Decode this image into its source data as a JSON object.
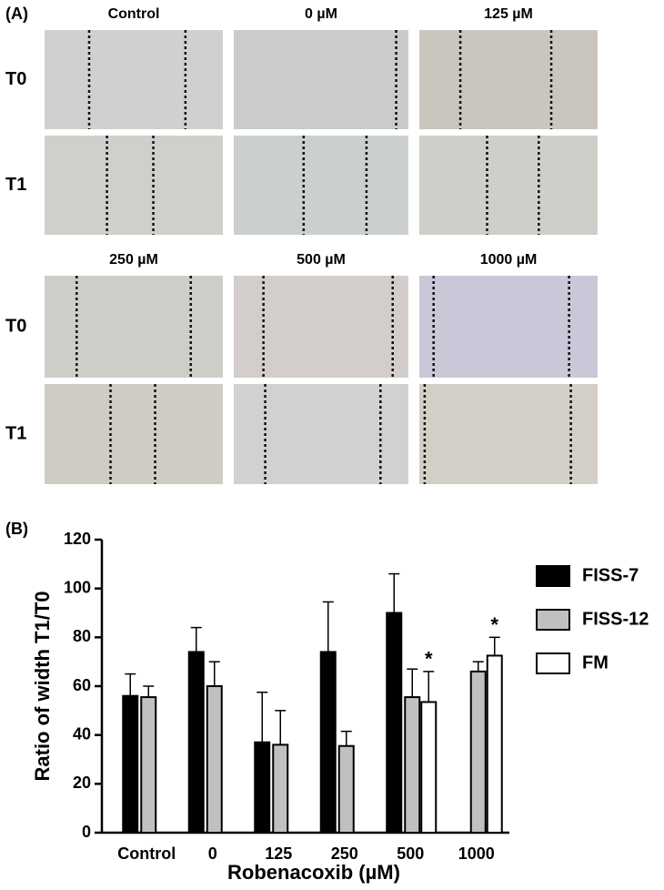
{
  "panel_a": {
    "label": "(A)",
    "groups": [
      {
        "columns": [
          "Control",
          "0 µM",
          "125 µM"
        ],
        "rows": [
          "T0",
          "T1"
        ]
      },
      {
        "columns": [
          "250 µM",
          "500 µM",
          "1000 µM"
        ],
        "rows": [
          "T0",
          "T1"
        ]
      }
    ]
  },
  "chart_data": {
    "type": "bar",
    "panel_label": "(B)",
    "y_label": "Ratio of width T1/T0",
    "x_label": "Robenacoxib (µM)",
    "categories": [
      "Control",
      "0",
      "125",
      "250",
      "500",
      "1000"
    ],
    "series": [
      {
        "name": "FISS-7",
        "color": "#000000",
        "values": [
          56,
          74,
          37,
          74,
          90,
          null
        ],
        "errors": [
          9,
          10,
          20.5,
          20.5,
          16,
          null
        ]
      },
      {
        "name": "FISS-12",
        "color": "#c0c0c0",
        "values": [
          55.5,
          60,
          36,
          35.5,
          55.5,
          66
        ],
        "errors": [
          4.5,
          10,
          14,
          6,
          11.5,
          4
        ]
      },
      {
        "name": "FM",
        "color": "#ffffff",
        "values": [
          null,
          null,
          null,
          null,
          53.5,
          72.5
        ],
        "errors": [
          null,
          null,
          null,
          null,
          12.5,
          7.5
        ],
        "annotations": [
          null,
          null,
          null,
          null,
          "*",
          "*"
        ]
      }
    ],
    "ylim": [
      0,
      120
    ],
    "yticks": [
      0,
      20,
      40,
      60,
      80,
      100,
      120
    ],
    "grid": false,
    "legend": "right"
  }
}
